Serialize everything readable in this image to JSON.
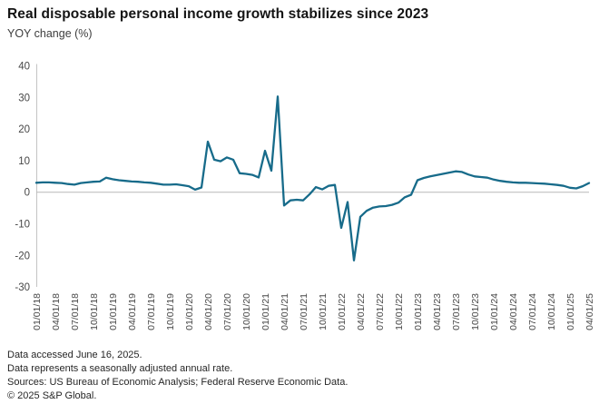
{
  "header": {
    "title": "Real disposable personal income growth stabilizes since 2023",
    "subtitle": "YOY change (%)"
  },
  "chart_data": {
    "type": "line",
    "title": "Real disposable personal income growth stabilizes since 2023",
    "ylabel": "YOY change (%)",
    "xlabel": "",
    "ylim": [
      -30,
      40
    ],
    "y_ticks": [
      40,
      30,
      20,
      10,
      0,
      -10,
      -20,
      -30
    ],
    "grid": "zero-line-only",
    "legend": "none",
    "frequency": "monthly",
    "x_start": "01/01/18",
    "x_end": "04/01/25",
    "x_tick_labels": [
      "01/01/18",
      "04/01/18",
      "07/01/18",
      "10/01/18",
      "01/01/19",
      "04/01/19",
      "07/01/19",
      "10/01/19",
      "01/01/20",
      "04/01/20",
      "07/01/20",
      "10/01/20",
      "01/01/21",
      "04/01/21",
      "07/01/21",
      "10/01/21",
      "01/01/22",
      "04/01/22",
      "07/01/22",
      "10/01/22",
      "01/01/23",
      "04/01/23",
      "07/01/23",
      "10/01/23",
      "01/01/24",
      "04/01/24",
      "07/01/24",
      "10/01/24",
      "01/01/25",
      "04/01/25"
    ],
    "series": [
      {
        "name": "Real disposable personal income, YOY % change",
        "values": [
          3.0,
          3.1,
          3.1,
          3.0,
          2.9,
          2.6,
          2.4,
          2.9,
          3.1,
          3.3,
          3.4,
          4.6,
          4.1,
          3.8,
          3.6,
          3.4,
          3.3,
          3.1,
          3.0,
          2.7,
          2.4,
          2.4,
          2.5,
          2.2,
          1.9,
          0.8,
          1.5,
          16.0,
          10.3,
          9.8,
          11.0,
          10.3,
          6.0,
          5.8,
          5.5,
          4.7,
          13.1,
          6.8,
          30.3,
          -4.2,
          -2.6,
          -2.4,
          -2.6,
          -0.7,
          1.6,
          0.9,
          2.0,
          2.3,
          -11.3,
          -3.1,
          -21.6,
          -7.8,
          -5.9,
          -4.9,
          -4.5,
          -4.4,
          -4.0,
          -3.3,
          -1.6,
          -0.8,
          3.8,
          4.5,
          5.0,
          5.4,
          5.8,
          6.2,
          6.6,
          6.4,
          5.6,
          5.0,
          4.8,
          4.6,
          4.0,
          3.6,
          3.3,
          3.1,
          3.0,
          3.0,
          2.9,
          2.8,
          2.7,
          2.5,
          2.3,
          2.0,
          1.4,
          1.2,
          1.9,
          2.9
        ]
      }
    ],
    "line_color": "#176b8a",
    "axis_color": "#c4c4c4",
    "zero_line_color": "#b8b8b8",
    "tick_label_color": "#474747"
  },
  "footer": {
    "line1": "Data accessed June 16, 2025.",
    "line2": "Data represents a seasonally adjusted annual rate.",
    "line3": "Sources: US Bureau of Economic Analysis; Federal Reserve Economic Data.",
    "line4": "© 2025 S&P Global."
  }
}
